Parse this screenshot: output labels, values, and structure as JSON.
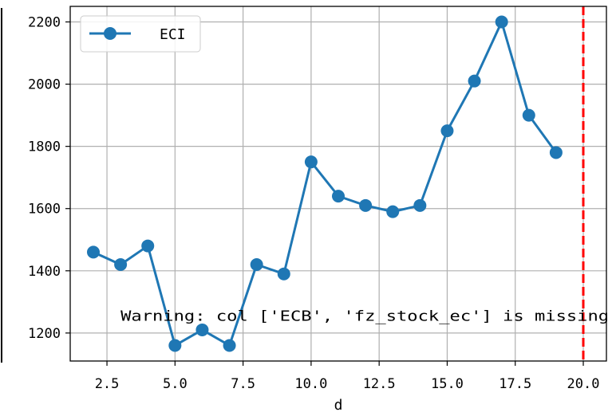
{
  "chart_data": {
    "type": "line",
    "xlabel": "d",
    "ylabel": "",
    "xlim": [
      1.15,
      20.85
    ],
    "ylim": [
      1110,
      2250
    ],
    "grid": true,
    "legend_position": "top-left",
    "x_ticks": [
      2.5,
      5.0,
      7.5,
      10.0,
      12.5,
      15.0,
      17.5,
      20.0
    ],
    "x_tick_labels": [
      "2.5",
      "5.0",
      "7.5",
      "10.0",
      "12.5",
      "15.0",
      "17.5",
      "20.0"
    ],
    "y_ticks": [
      1200,
      1400,
      1600,
      1800,
      2000,
      2200
    ],
    "y_tick_labels": [
      "1200",
      "1400",
      "1600",
      "1800",
      "2000",
      "2200"
    ],
    "series": [
      {
        "name": "ECI",
        "color": "#1f77b4",
        "x": [
          2,
          3,
          4,
          5,
          6,
          7,
          8,
          9,
          10,
          11,
          12,
          13,
          14,
          15,
          16,
          17,
          18,
          19
        ],
        "y": [
          1460,
          1420,
          1480,
          1160,
          1210,
          1160,
          1420,
          1390,
          1750,
          1640,
          1610,
          1590,
          1610,
          1850,
          2010,
          2200,
          1900,
          1780
        ]
      }
    ],
    "vline": {
      "x": 20,
      "color": "#ff0000",
      "style": "dashed"
    },
    "annotation": {
      "text": "Warning: col ['ECB', 'fz_stock_ec'] is missing",
      "x": 3.0,
      "y": 1240
    }
  }
}
